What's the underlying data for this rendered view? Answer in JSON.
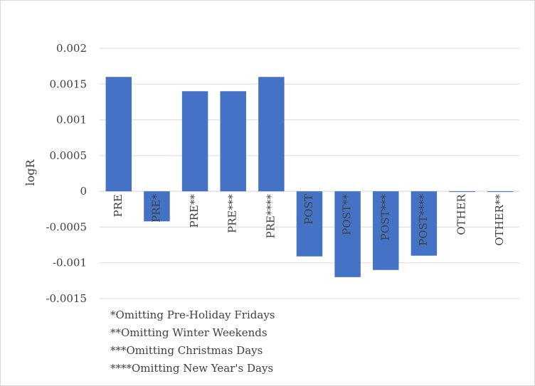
{
  "chart_data": {
    "type": "bar",
    "title": "",
    "xlabel": "",
    "ylabel": "logR",
    "ylim": [
      -0.0015,
      0.002
    ],
    "yticks": [
      0.002,
      0.0015,
      0.001,
      0.0005,
      0,
      -0.0005,
      -0.001,
      -0.0015
    ],
    "ytick_labels": [
      "0.002",
      "0.0015",
      "0.001",
      "0.0005",
      "0",
      "-0.0005",
      "-0.001",
      "-0.0015"
    ],
    "grid": true,
    "bar_color": "#4472C4",
    "categories": [
      "PRE",
      "PRE*",
      "PRE**",
      "PRE***",
      "PRE****",
      "POST",
      "POST**",
      "POST***",
      "POST****",
      "OTHER",
      "OTHER**"
    ],
    "values": [
      0.0016,
      -0.00042,
      0.0014,
      0.0014,
      0.0016,
      -0.00091,
      -0.0012,
      -0.0011,
      -0.0009,
      0.0,
      0.0
    ],
    "notes": [
      "*Omitting Pre-Holiday Fridays",
      "**Omitting Winter Weekends",
      "***Omitting Christmas Days",
      "****Omitting New Year's Days"
    ]
  }
}
